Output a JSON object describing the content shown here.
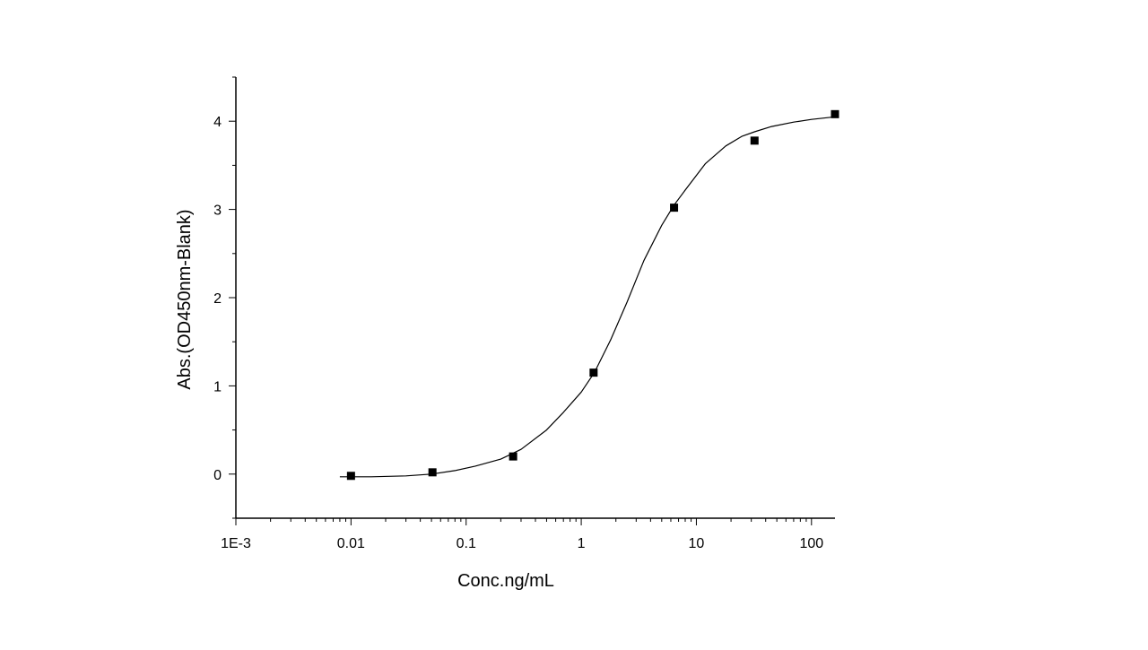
{
  "chart_data": {
    "type": "scatter",
    "title": "",
    "xlabel": "Conc.ng/mL",
    "ylabel": "Abs.(OD450nm-Blank)",
    "x_scale": "log",
    "xlim": [
      0.001,
      160
    ],
    "ylim": [
      -0.5,
      4.5
    ],
    "x_ticks": [
      0.001,
      0.01,
      0.1,
      1,
      10,
      100
    ],
    "x_tick_labels": [
      "1E-3",
      "0.01",
      "0.1",
      "1",
      "10",
      "100"
    ],
    "y_ticks": [
      0,
      1,
      2,
      3,
      4
    ],
    "y_tick_labels": [
      "0",
      "1",
      "2",
      "3",
      "4"
    ],
    "grid": false,
    "legend": "none",
    "series": [
      {
        "kind": "points",
        "marker": "square",
        "color": "#000000",
        "x": [
          0.01,
          0.051,
          0.256,
          1.28,
          6.4,
          32,
          160
        ],
        "y": [
          -0.02,
          0.02,
          0.2,
          1.15,
          3.02,
          3.78,
          4.08
        ]
      },
      {
        "kind": "fitted-curve",
        "color": "#000000",
        "x": [
          0.008,
          0.015,
          0.03,
          0.05,
          0.08,
          0.12,
          0.2,
          0.3,
          0.5,
          0.7,
          1.0,
          1.3,
          1.8,
          2.5,
          3.5,
          5.0,
          6.4,
          8.0,
          12,
          18,
          25,
          32,
          45,
          70,
          100,
          160
        ],
        "y": [
          -0.03,
          -0.03,
          -0.02,
          0.0,
          0.04,
          0.09,
          0.17,
          0.28,
          0.5,
          0.7,
          0.93,
          1.15,
          1.52,
          1.95,
          2.42,
          2.82,
          3.05,
          3.22,
          3.52,
          3.72,
          3.83,
          3.88,
          3.94,
          3.99,
          4.02,
          4.05
        ]
      }
    ]
  }
}
